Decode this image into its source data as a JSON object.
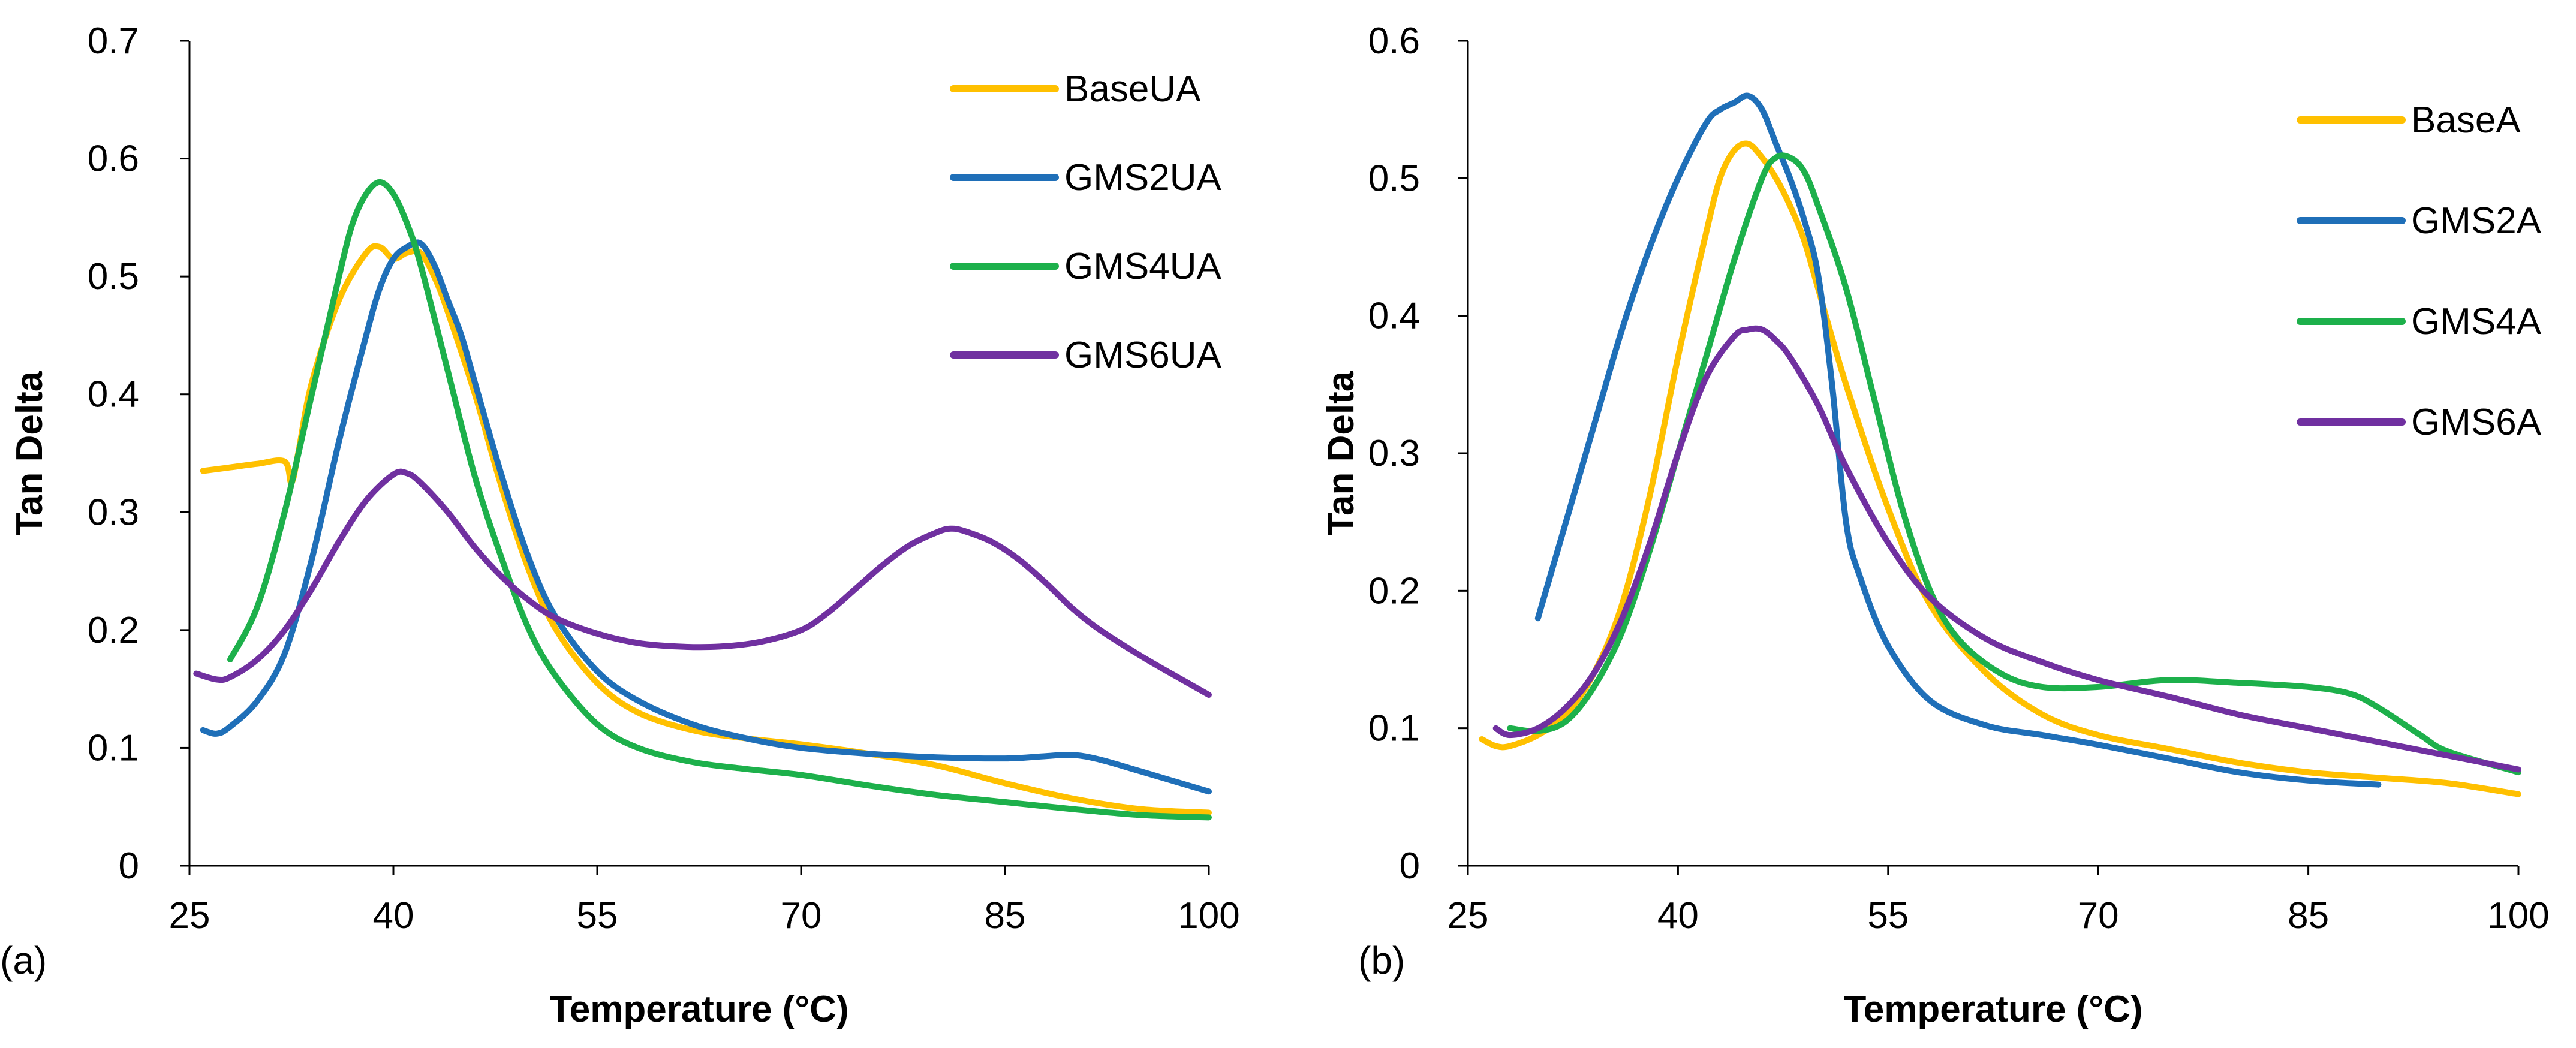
{
  "chart_data": [
    {
      "type": "line",
      "panel": "(a)",
      "title": "",
      "xlabel": "Temperature (°C)",
      "ylabel": "Tan Delta",
      "xlim": [
        25,
        100
      ],
      "ylim": [
        0,
        0.7
      ],
      "xticks": [
        25,
        40,
        55,
        70,
        85,
        100
      ],
      "yticks": [
        0,
        0.1,
        0.2,
        0.3,
        0.4,
        0.5,
        0.6,
        0.7
      ],
      "ytick_labels": [
        "0",
        "0.1",
        "0.2",
        "0.3",
        "0.4",
        "0.5",
        "0.6",
        "0.7"
      ],
      "grid": false,
      "legend_position": "top-right",
      "series": [
        {
          "name": "BaseUA",
          "color": "#FFC000",
          "x": [
            26,
            28,
            30,
            32,
            32.5,
            33,
            34,
            36,
            38,
            39,
            40,
            41,
            42,
            43,
            44,
            46,
            48,
            50,
            52,
            55,
            58,
            62,
            66,
            70,
            75,
            80,
            85,
            90,
            95,
            100
          ],
          "y": [
            0.335,
            0.338,
            0.341,
            0.343,
            0.325,
            0.35,
            0.41,
            0.48,
            0.52,
            0.525,
            0.515,
            0.52,
            0.52,
            0.5,
            0.47,
            0.4,
            0.32,
            0.25,
            0.2,
            0.155,
            0.13,
            0.115,
            0.108,
            0.103,
            0.095,
            0.085,
            0.07,
            0.057,
            0.048,
            0.045
          ]
        },
        {
          "name": "GMS2UA",
          "color": "#1F6FB8",
          "x": [
            26,
            27,
            28,
            30,
            32,
            34,
            36,
            38,
            39,
            40,
            41,
            42,
            43,
            44,
            45,
            46,
            48,
            50,
            52,
            55,
            58,
            62,
            66,
            70,
            75,
            80,
            85,
            88,
            90,
            92,
            95,
            100
          ],
          "y": [
            0.115,
            0.112,
            0.118,
            0.14,
            0.18,
            0.26,
            0.36,
            0.45,
            0.49,
            0.515,
            0.525,
            0.528,
            0.51,
            0.48,
            0.45,
            0.41,
            0.33,
            0.26,
            0.21,
            0.165,
            0.14,
            0.12,
            0.108,
            0.1,
            0.095,
            0.092,
            0.091,
            0.093,
            0.094,
            0.09,
            0.08,
            0.063
          ]
        },
        {
          "name": "GMS4UA",
          "color": "#1DB04B",
          "x": [
            28,
            30,
            32,
            34,
            36,
            37,
            38,
            39,
            40,
            41,
            42,
            44,
            46,
            48,
            50,
            52,
            55,
            58,
            62,
            66,
            70,
            75,
            80,
            85,
            90,
            95,
            100
          ],
          "y": [
            0.175,
            0.22,
            0.3,
            0.4,
            0.5,
            0.545,
            0.57,
            0.58,
            0.57,
            0.545,
            0.51,
            0.42,
            0.33,
            0.26,
            0.2,
            0.16,
            0.12,
            0.1,
            0.088,
            0.082,
            0.077,
            0.068,
            0.06,
            0.054,
            0.048,
            0.043,
            0.041
          ]
        },
        {
          "name": "GMS6UA",
          "color": "#7030A0",
          "x": [
            25.5,
            27,
            28,
            30,
            32,
            34,
            36,
            38,
            40,
            41,
            42,
            44,
            46,
            48,
            50,
            52,
            55,
            58,
            61,
            64,
            67,
            70,
            72,
            74,
            76,
            78,
            80,
            81,
            82,
            84,
            86,
            88,
            90,
            92,
            95,
            98,
            100
          ],
          "y": [
            0.163,
            0.158,
            0.16,
            0.175,
            0.2,
            0.235,
            0.275,
            0.31,
            0.332,
            0.333,
            0.325,
            0.3,
            0.27,
            0.245,
            0.225,
            0.21,
            0.197,
            0.189,
            0.186,
            0.186,
            0.19,
            0.2,
            0.215,
            0.235,
            0.255,
            0.272,
            0.283,
            0.286,
            0.284,
            0.275,
            0.26,
            0.24,
            0.218,
            0.2,
            0.178,
            0.158,
            0.145
          ]
        }
      ]
    },
    {
      "type": "line",
      "panel": "(b)",
      "title": "",
      "xlabel": "Temperature (°C)",
      "ylabel": "Tan Delta",
      "xlim": [
        25,
        100
      ],
      "ylim": [
        0,
        0.6
      ],
      "xticks": [
        25,
        40,
        55,
        70,
        85,
        100
      ],
      "yticks": [
        0,
        0.1,
        0.2,
        0.3,
        0.4,
        0.5,
        0.6
      ],
      "ytick_labels": [
        "0",
        "0.1",
        "0.2",
        "0.3",
        "0.4",
        "0.5",
        "0.6"
      ],
      "grid": false,
      "legend_position": "top-right",
      "series": [
        {
          "name": "BaseA",
          "color": "#FFC000",
          "x": [
            26,
            27,
            28,
            30,
            32,
            34,
            36,
            38,
            40,
            42,
            43,
            44,
            45,
            46,
            47,
            48,
            49,
            50,
            52,
            55,
            58,
            62,
            66,
            70,
            75,
            80,
            85,
            90,
            95,
            100
          ],
          "y": [
            0.092,
            0.087,
            0.087,
            0.095,
            0.11,
            0.14,
            0.19,
            0.27,
            0.37,
            0.46,
            0.5,
            0.52,
            0.525,
            0.515,
            0.5,
            0.48,
            0.455,
            0.42,
            0.35,
            0.26,
            0.19,
            0.14,
            0.11,
            0.095,
            0.085,
            0.075,
            0.068,
            0.064,
            0.06,
            0.052
          ]
        },
        {
          "name": "GMS2A",
          "color": "#1F6FB8",
          "x": [
            30,
            32,
            34,
            36,
            38,
            40,
            42,
            43,
            44,
            45,
            46,
            47,
            48,
            49,
            50,
            51,
            52,
            53,
            55,
            58,
            62,
            66,
            70,
            75,
            80,
            85,
            90
          ],
          "y": [
            0.18,
            0.25,
            0.32,
            0.39,
            0.45,
            0.5,
            0.54,
            0.55,
            0.555,
            0.56,
            0.55,
            0.525,
            0.5,
            0.47,
            0.43,
            0.35,
            0.25,
            0.21,
            0.16,
            0.12,
            0.102,
            0.095,
            0.088,
            0.078,
            0.068,
            0.062,
            0.059
          ]
        },
        {
          "name": "GMS4A",
          "color": "#1DB04B",
          "x": [
            28,
            30,
            32,
            34,
            36,
            38,
            40,
            42,
            44,
            46,
            47,
            48,
            49,
            50,
            52,
            54,
            56,
            58,
            60,
            63,
            66,
            70,
            75,
            80,
            85,
            88,
            90,
            93,
            95,
            100
          ],
          "y": [
            0.1,
            0.098,
            0.105,
            0.13,
            0.17,
            0.23,
            0.3,
            0.37,
            0.44,
            0.5,
            0.515,
            0.515,
            0.505,
            0.48,
            0.42,
            0.34,
            0.26,
            0.2,
            0.165,
            0.14,
            0.13,
            0.13,
            0.135,
            0.133,
            0.13,
            0.125,
            0.115,
            0.095,
            0.083,
            0.068
          ]
        },
        {
          "name": "GMS6A",
          "color": "#7030A0",
          "x": [
            27,
            28,
            30,
            32,
            34,
            36,
            38,
            40,
            42,
            44,
            45,
            46,
            47,
            48,
            50,
            52,
            55,
            58,
            62,
            66,
            70,
            75,
            80,
            85,
            90,
            95,
            100
          ],
          "y": [
            0.1,
            0.095,
            0.1,
            0.115,
            0.14,
            0.18,
            0.235,
            0.3,
            0.355,
            0.385,
            0.39,
            0.39,
            0.382,
            0.37,
            0.335,
            0.29,
            0.235,
            0.195,
            0.165,
            0.148,
            0.135,
            0.123,
            0.11,
            0.1,
            0.09,
            0.08,
            0.07
          ]
        }
      ]
    }
  ]
}
